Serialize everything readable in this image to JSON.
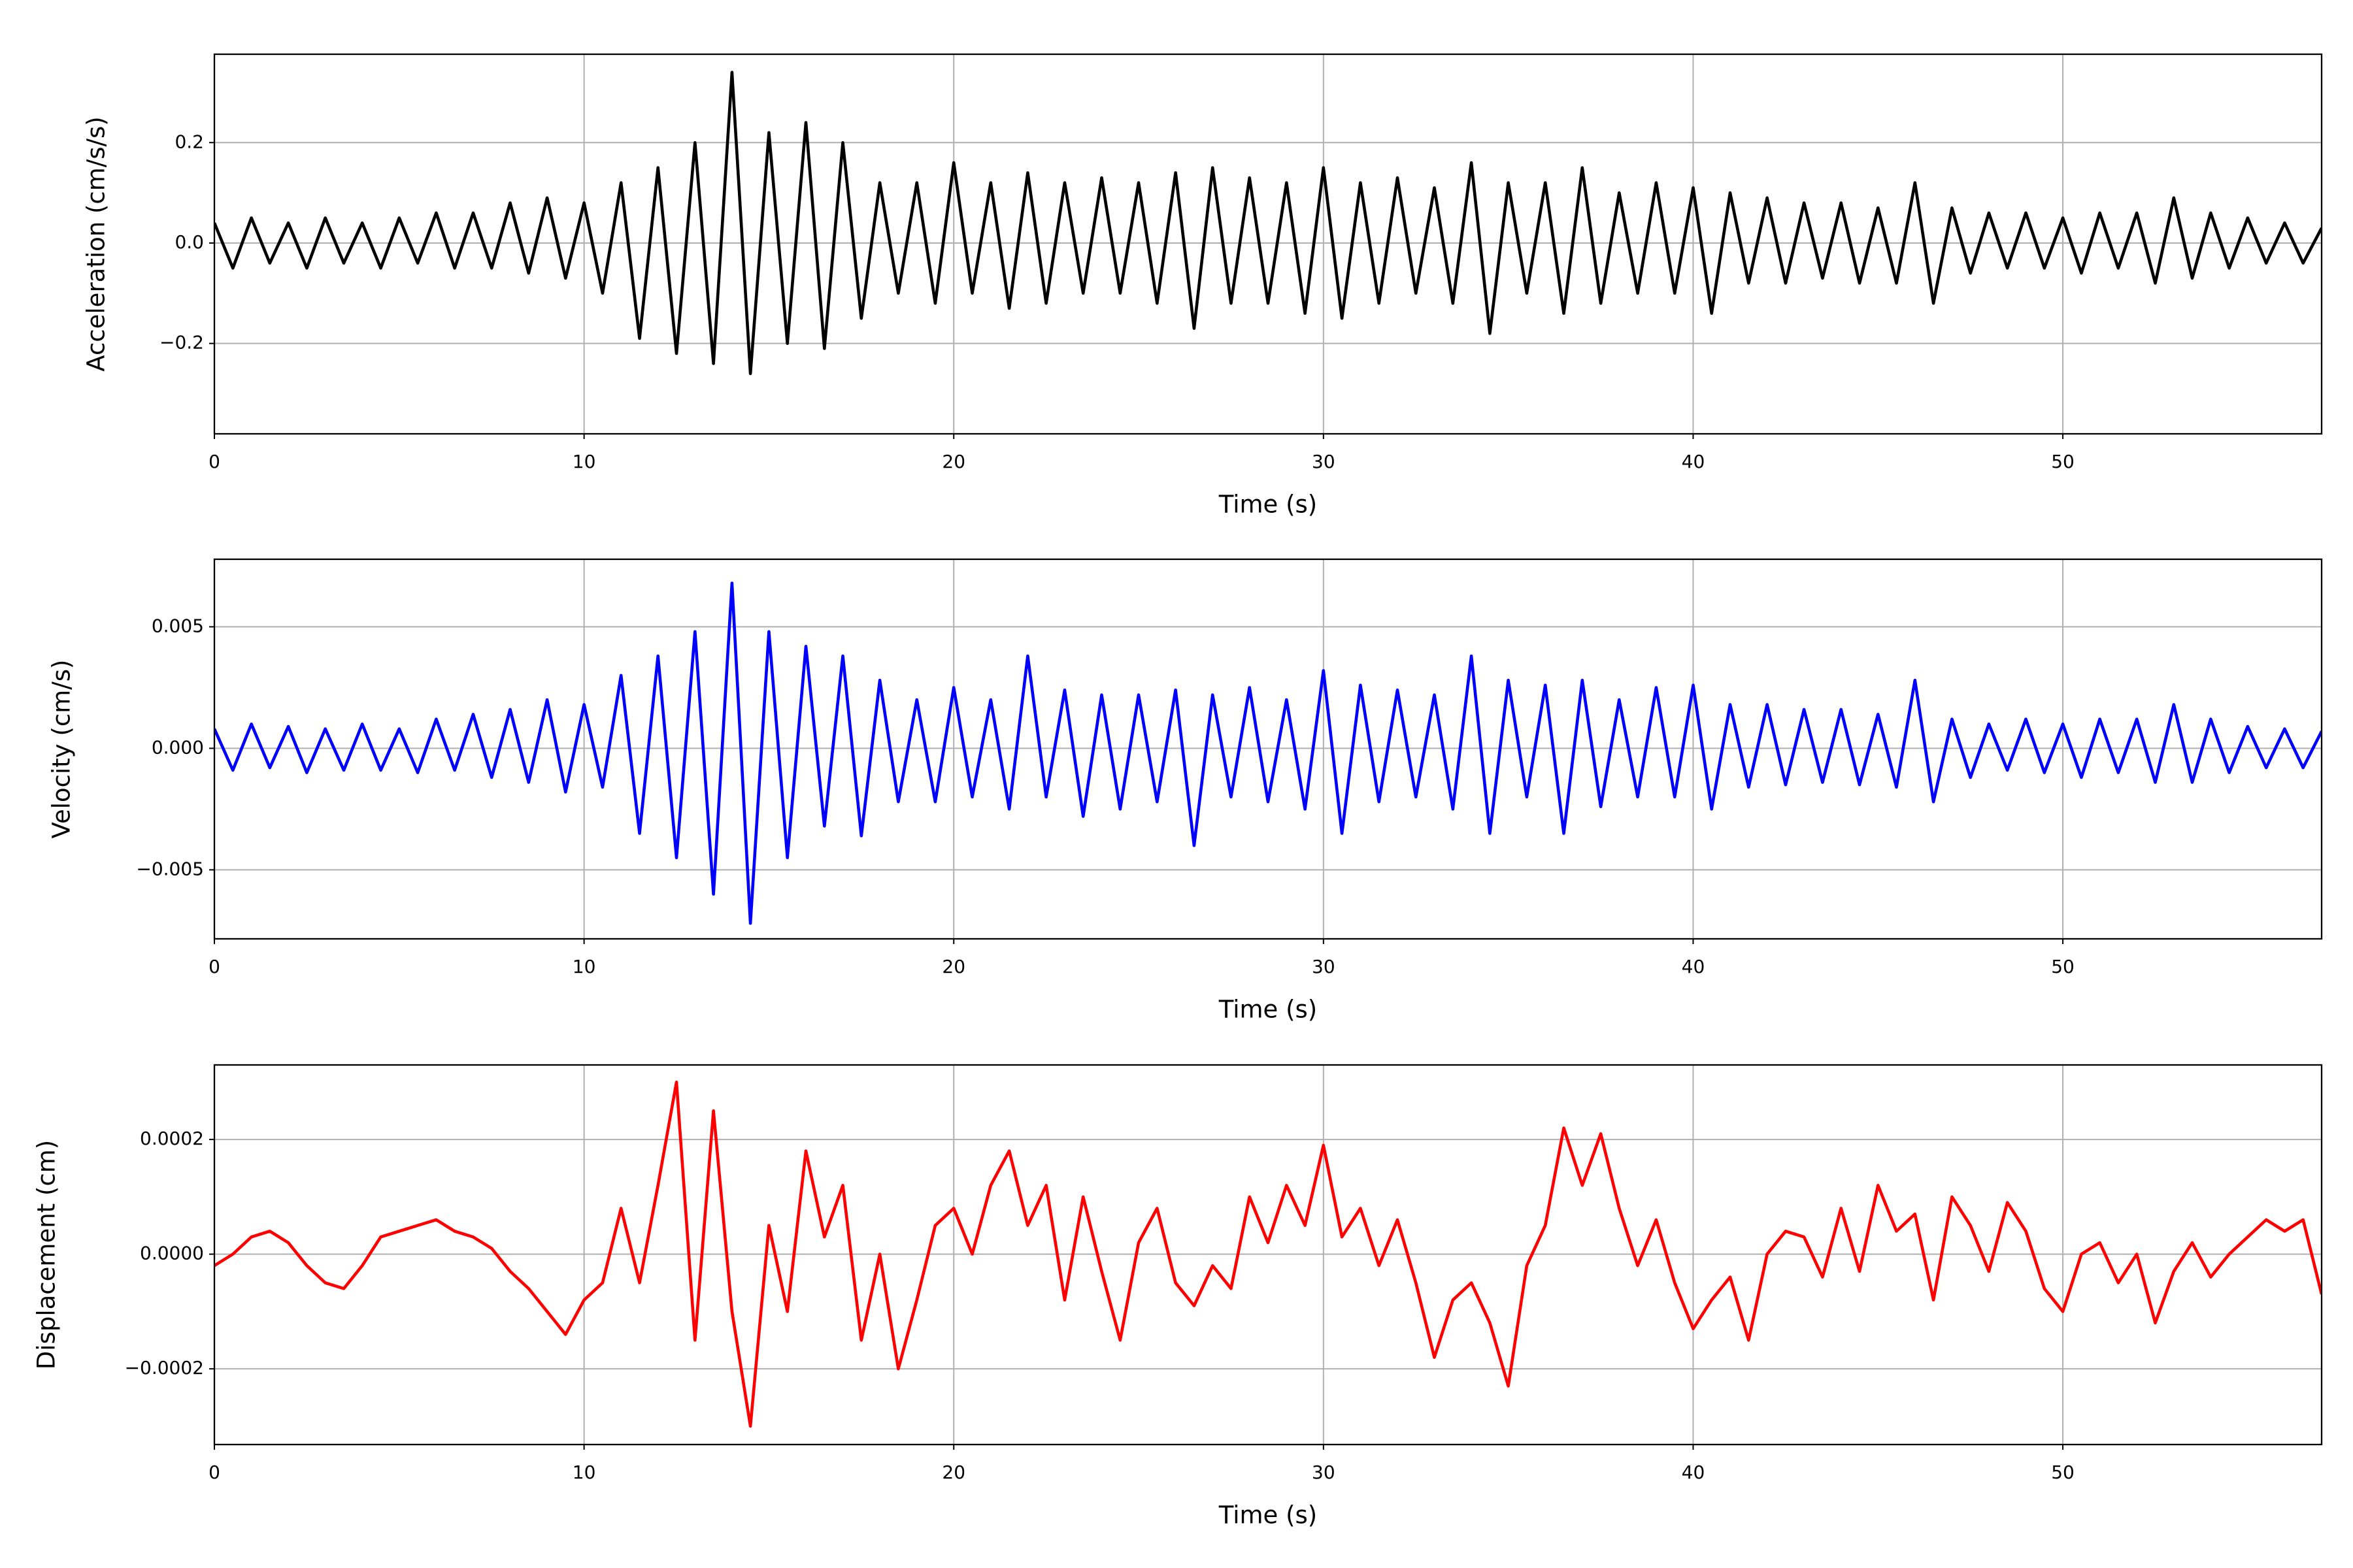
{
  "chart_data": [
    {
      "type": "line",
      "xlabel": "Time (s)",
      "ylabel": "Acceleration (cm/s/s)",
      "color": "#000000",
      "grid": true,
      "xlim": [
        0,
        57
      ],
      "xticks": [
        0,
        10,
        20,
        30,
        40,
        50
      ],
      "ylim": [
        -0.38,
        0.376
      ],
      "yticks": [
        {
          "value": -0.2,
          "label": "−0.2"
        },
        {
          "value": 0,
          "label": "0.0"
        },
        0.2
      ],
      "x": [
        0,
        0.5,
        1,
        1.5,
        2,
        2.5,
        3,
        3.5,
        4,
        4.5,
        5,
        5.5,
        6,
        6.5,
        7,
        7.5,
        8,
        8.5,
        9,
        9.5,
        10,
        10.5,
        11,
        11.5,
        12,
        12.5,
        13,
        13.5,
        14,
        14.5,
        15,
        15.5,
        16,
        16.5,
        17,
        17.5,
        18,
        18.5,
        19,
        19.5,
        20,
        20.5,
        21,
        21.5,
        22,
        22.5,
        23,
        23.5,
        24,
        24.5,
        25,
        25.5,
        26,
        26.5,
        27,
        27.5,
        28,
        28.5,
        29,
        29.5,
        30,
        30.5,
        31,
        31.5,
        32,
        32.5,
        33,
        33.5,
        34,
        34.5,
        35,
        35.5,
        36,
        36.5,
        37,
        37.5,
        38,
        38.5,
        39,
        39.5,
        40,
        40.5,
        41,
        41.5,
        42,
        42.5,
        43,
        43.5,
        44,
        44.5,
        45,
        45.5,
        46,
        46.5,
        47,
        47.5,
        48,
        48.5,
        49,
        49.5,
        50,
        50.5,
        51,
        51.5,
        52,
        52.5,
        53,
        53.5,
        54,
        54.5,
        55,
        55.5,
        56,
        56.5,
        57
      ],
      "values": [
        0.04,
        -0.05,
        0.05,
        -0.04,
        0.04,
        -0.05,
        0.05,
        -0.04,
        0.04,
        -0.05,
        0.05,
        -0.04,
        0.06,
        -0.05,
        0.06,
        -0.05,
        0.08,
        -0.06,
        0.09,
        -0.07,
        0.08,
        -0.1,
        0.12,
        -0.19,
        0.15,
        -0.22,
        0.2,
        -0.24,
        0.34,
        -0.26,
        0.22,
        -0.2,
        0.24,
        -0.21,
        0.2,
        -0.15,
        0.12,
        -0.1,
        0.12,
        -0.12,
        0.16,
        -0.1,
        0.12,
        -0.13,
        0.14,
        -0.12,
        0.12,
        -0.1,
        0.13,
        -0.1,
        0.12,
        -0.12,
        0.14,
        -0.17,
        0.15,
        -0.12,
        0.13,
        -0.12,
        0.12,
        -0.14,
        0.15,
        -0.15,
        0.12,
        -0.12,
        0.13,
        -0.1,
        0.11,
        -0.12,
        0.16,
        -0.18,
        0.12,
        -0.1,
        0.12,
        -0.14,
        0.15,
        -0.12,
        0.1,
        -0.1,
        0.12,
        -0.1,
        0.11,
        -0.14,
        0.1,
        -0.08,
        0.09,
        -0.08,
        0.08,
        -0.07,
        0.08,
        -0.08,
        0.07,
        -0.08,
        0.12,
        -0.12,
        0.07,
        -0.06,
        0.06,
        -0.05,
        0.06,
        -0.05,
        0.05,
        -0.06,
        0.06,
        -0.05,
        0.06,
        -0.08,
        0.09,
        -0.07,
        0.06,
        -0.05,
        0.05,
        -0.04,
        0.04,
        -0.04,
        0.03
      ]
    },
    {
      "type": "line",
      "xlabel": "Time (s)",
      "ylabel": "Velocity (cm/s)",
      "color": "#0000ff",
      "grid": true,
      "xlim": [
        0,
        57
      ],
      "xticks": [
        0,
        10,
        20,
        30,
        40,
        50
      ],
      "ylim": [
        -0.00784,
        0.00778
      ],
      "yticks": [
        {
          "value": -0.005,
          "label": "−0.005"
        },
        {
          "value": 0,
          "label": "0.000"
        },
        0.005
      ],
      "x": [
        0,
        0.5,
        1,
        1.5,
        2,
        2.5,
        3,
        3.5,
        4,
        4.5,
        5,
        5.5,
        6,
        6.5,
        7,
        7.5,
        8,
        8.5,
        9,
        9.5,
        10,
        10.5,
        11,
        11.5,
        12,
        12.5,
        13,
        13.5,
        14,
        14.5,
        15,
        15.5,
        16,
        16.5,
        17,
        17.5,
        18,
        18.5,
        19,
        19.5,
        20,
        20.5,
        21,
        21.5,
        22,
        22.5,
        23,
        23.5,
        24,
        24.5,
        25,
        25.5,
        26,
        26.5,
        27,
        27.5,
        28,
        28.5,
        29,
        29.5,
        30,
        30.5,
        31,
        31.5,
        32,
        32.5,
        33,
        33.5,
        34,
        34.5,
        35,
        35.5,
        36,
        36.5,
        37,
        37.5,
        38,
        38.5,
        39,
        39.5,
        40,
        40.5,
        41,
        41.5,
        42,
        42.5,
        43,
        43.5,
        44,
        44.5,
        45,
        45.5,
        46,
        46.5,
        47,
        47.5,
        48,
        48.5,
        49,
        49.5,
        50,
        50.5,
        51,
        51.5,
        52,
        52.5,
        53,
        53.5,
        54,
        54.5,
        55,
        55.5,
        56,
        56.5,
        57
      ],
      "values": [
        0.0008,
        -0.0009,
        0.001,
        -0.0008,
        0.0009,
        -0.001,
        0.0008,
        -0.0009,
        0.001,
        -0.0009,
        0.0008,
        -0.001,
        0.0012,
        -0.0009,
        0.0014,
        -0.0012,
        0.0016,
        -0.0014,
        0.002,
        -0.0018,
        0.0018,
        -0.0016,
        0.003,
        -0.0035,
        0.0038,
        -0.0045,
        0.0048,
        -0.006,
        0.0068,
        -0.0072,
        0.0048,
        -0.0045,
        0.0042,
        -0.0032,
        0.0038,
        -0.0036,
        0.0028,
        -0.0022,
        0.002,
        -0.0022,
        0.0025,
        -0.002,
        0.002,
        -0.0025,
        0.0038,
        -0.002,
        0.0024,
        -0.0028,
        0.0022,
        -0.0025,
        0.0022,
        -0.0022,
        0.0024,
        -0.004,
        0.0022,
        -0.002,
        0.0025,
        -0.0022,
        0.002,
        -0.0025,
        0.0032,
        -0.0035,
        0.0026,
        -0.0022,
        0.0024,
        -0.002,
        0.0022,
        -0.0025,
        0.0038,
        -0.0035,
        0.0028,
        -0.002,
        0.0026,
        -0.0035,
        0.0028,
        -0.0024,
        0.002,
        -0.002,
        0.0025,
        -0.002,
        0.0026,
        -0.0025,
        0.0018,
        -0.0016,
        0.0018,
        -0.0015,
        0.0016,
        -0.0014,
        0.0016,
        -0.0015,
        0.0014,
        -0.0016,
        0.0028,
        -0.0022,
        0.0012,
        -0.0012,
        0.001,
        -0.0009,
        0.0012,
        -0.001,
        0.001,
        -0.0012,
        0.0012,
        -0.001,
        0.0012,
        -0.0014,
        0.0018,
        -0.0014,
        0.0012,
        -0.001,
        0.0009,
        -0.0008,
        0.0008,
        -0.0008,
        0.0007
      ]
    },
    {
      "type": "line",
      "xlabel": "Time (s)",
      "ylabel": "Displacement (cm)",
      "color": "#ff0000",
      "grid": true,
      "xlim": [
        0,
        57
      ],
      "xticks": [
        0,
        10,
        20,
        30,
        40,
        50
      ],
      "ylim": [
        -0.000332,
        0.00033
      ],
      "yticks": [
        {
          "value": -0.0002,
          "label": "−0.0002"
        },
        {
          "value": 0,
          "label": "0.0000"
        },
        0.0002
      ],
      "x": [
        0,
        0.5,
        1,
        1.5,
        2,
        2.5,
        3,
        3.5,
        4,
        4.5,
        5,
        5.5,
        6,
        6.5,
        7,
        7.5,
        8,
        8.5,
        9,
        9.5,
        10,
        10.5,
        11,
        11.5,
        12,
        12.5,
        13,
        13.5,
        14,
        14.5,
        15,
        15.5,
        16,
        16.5,
        17,
        17.5,
        18,
        18.5,
        19,
        19.5,
        20,
        20.5,
        21,
        21.5,
        22,
        22.5,
        23,
        23.5,
        24,
        24.5,
        25,
        25.5,
        26,
        26.5,
        27,
        27.5,
        28,
        28.5,
        29,
        29.5,
        30,
        30.5,
        31,
        31.5,
        32,
        32.5,
        33,
        33.5,
        34,
        34.5,
        35,
        35.5,
        36,
        36.5,
        37,
        37.5,
        38,
        38.5,
        39,
        39.5,
        40,
        40.5,
        41,
        41.5,
        42,
        42.5,
        43,
        43.5,
        44,
        44.5,
        45,
        45.5,
        46,
        46.5,
        47,
        47.5,
        48,
        48.5,
        49,
        49.5,
        50,
        50.5,
        51,
        51.5,
        52,
        52.5,
        53,
        53.5,
        54,
        54.5,
        55,
        55.5,
        56,
        56.5,
        57
      ],
      "values": [
        -2e-05,
        0,
        3e-05,
        4e-05,
        2e-05,
        -2e-05,
        -5e-05,
        -6e-05,
        -2e-05,
        3e-05,
        4e-05,
        5e-05,
        6e-05,
        4e-05,
        3e-05,
        1e-05,
        -3e-05,
        -6e-05,
        -0.0001,
        -0.00014,
        -8e-05,
        -5e-05,
        8e-05,
        -5e-05,
        0.00012,
        0.0003,
        -0.00015,
        0.00025,
        -0.0001,
        -0.0003,
        5e-05,
        -0.0001,
        0.00018,
        3e-05,
        0.00012,
        -0.00015,
        0,
        -0.0002,
        -8e-05,
        5e-05,
        8e-05,
        0,
        0.00012,
        0.00018,
        5e-05,
        0.00012,
        -8e-05,
        0.0001,
        -3e-05,
        -0.00015,
        2e-05,
        8e-05,
        -5e-05,
        -9e-05,
        -2e-05,
        -6e-05,
        0.0001,
        2e-05,
        0.00012,
        5e-05,
        0.00019,
        3e-05,
        8e-05,
        -2e-05,
        6e-05,
        -5e-05,
        -0.00018,
        -8e-05,
        -5e-05,
        -0.00012,
        -0.00023,
        -2e-05,
        5e-05,
        0.00022,
        0.00012,
        0.00021,
        8e-05,
        -2e-05,
        6e-05,
        -5e-05,
        -0.00013,
        -8e-05,
        -4e-05,
        -0.00015,
        0,
        4e-05,
        3e-05,
        -4e-05,
        8e-05,
        -3e-05,
        0.00012,
        4e-05,
        7e-05,
        -8e-05,
        0.0001,
        5e-05,
        -3e-05,
        9e-05,
        4e-05,
        -6e-05,
        -0.0001,
        0,
        2e-05,
        -5e-05,
        0,
        -0.00012,
        -3e-05,
        2e-05,
        -4e-05,
        0,
        3e-05,
        6e-05,
        4e-05,
        6e-05,
        -7e-05
      ]
    }
  ]
}
